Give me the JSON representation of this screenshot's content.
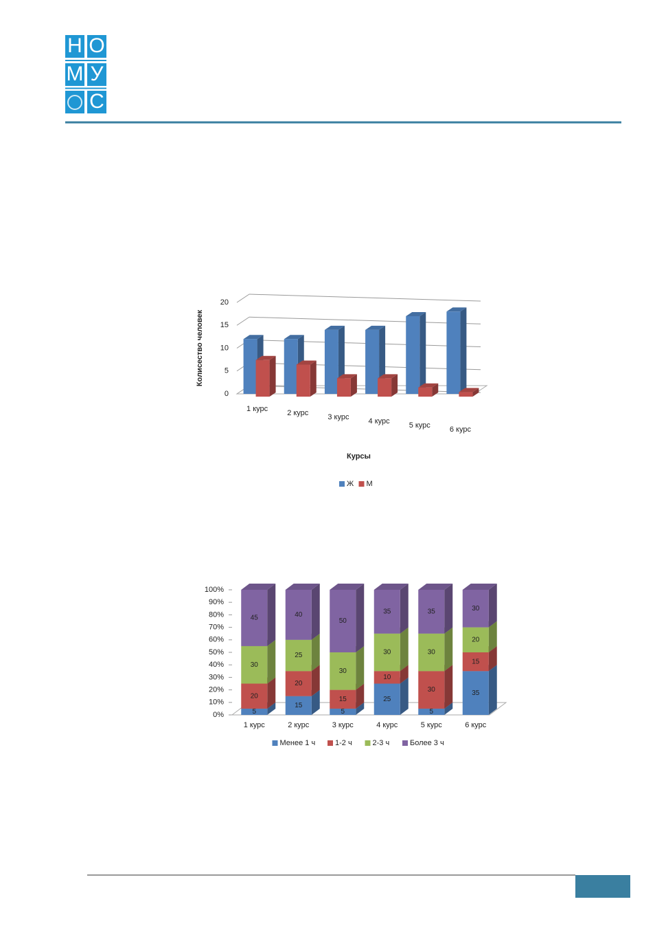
{
  "logo": [
    "Н",
    "О",
    "М",
    "У",
    "С"
  ],
  "chart_data": [
    {
      "type": "bar",
      "ylabel": "Колисество человек",
      "xlabel": "Курсы",
      "categories": [
        "1 курс",
        "2 курс",
        "3 курс",
        "4 курс",
        "5 курс",
        "6 курс"
      ],
      "series": [
        {
          "name": "Ж",
          "color": "#4f81bd",
          "values": [
            12,
            12,
            14,
            14,
            17,
            18
          ]
        },
        {
          "name": "М",
          "color": "#c0504d",
          "values": [
            8,
            7,
            4,
            4,
            2,
            1
          ]
        }
      ],
      "ylim": [
        0,
        20
      ],
      "yticks": [
        0,
        5,
        10,
        15,
        20
      ],
      "grid": true,
      "legend": "bottom"
    },
    {
      "type": "stacked_bar",
      "categories": [
        "1 курс",
        "2 курс",
        "3 курс",
        "4 курс",
        "5 курс",
        "6 курс"
      ],
      "series": [
        {
          "name": "Менее 1 ч",
          "color": "#4f81bd",
          "values": [
            5,
            15,
            5,
            25,
            5,
            35
          ]
        },
        {
          "name": "1-2 ч",
          "color": "#c0504d",
          "values": [
            20,
            20,
            15,
            10,
            30,
            15
          ]
        },
        {
          "name": "2-3 ч",
          "color": "#9bbb59",
          "values": [
            30,
            25,
            30,
            30,
            30,
            20
          ]
        },
        {
          "name": "Более 3 ч",
          "color": "#8064a2",
          "values": [
            45,
            40,
            50,
            35,
            35,
            30
          ]
        }
      ],
      "ylim": [
        0,
        100
      ],
      "yticks": [
        {
          "value": 0,
          "label": "0%"
        },
        {
          "value": 10,
          "label": "10%"
        },
        {
          "value": 20,
          "label": "20%"
        },
        {
          "value": 30,
          "label": "30%"
        },
        {
          "value": 40,
          "label": "40%"
        },
        {
          "value": 50,
          "label": "50%"
        },
        {
          "value": 60,
          "label": "60%"
        },
        {
          "value": 70,
          "label": "70%"
        },
        {
          "value": 80,
          "label": "80%"
        },
        {
          "value": 90,
          "label": "90%"
        },
        {
          "value": 100,
          "label": "100%"
        }
      ],
      "grid": false,
      "legend": "bottom"
    }
  ]
}
